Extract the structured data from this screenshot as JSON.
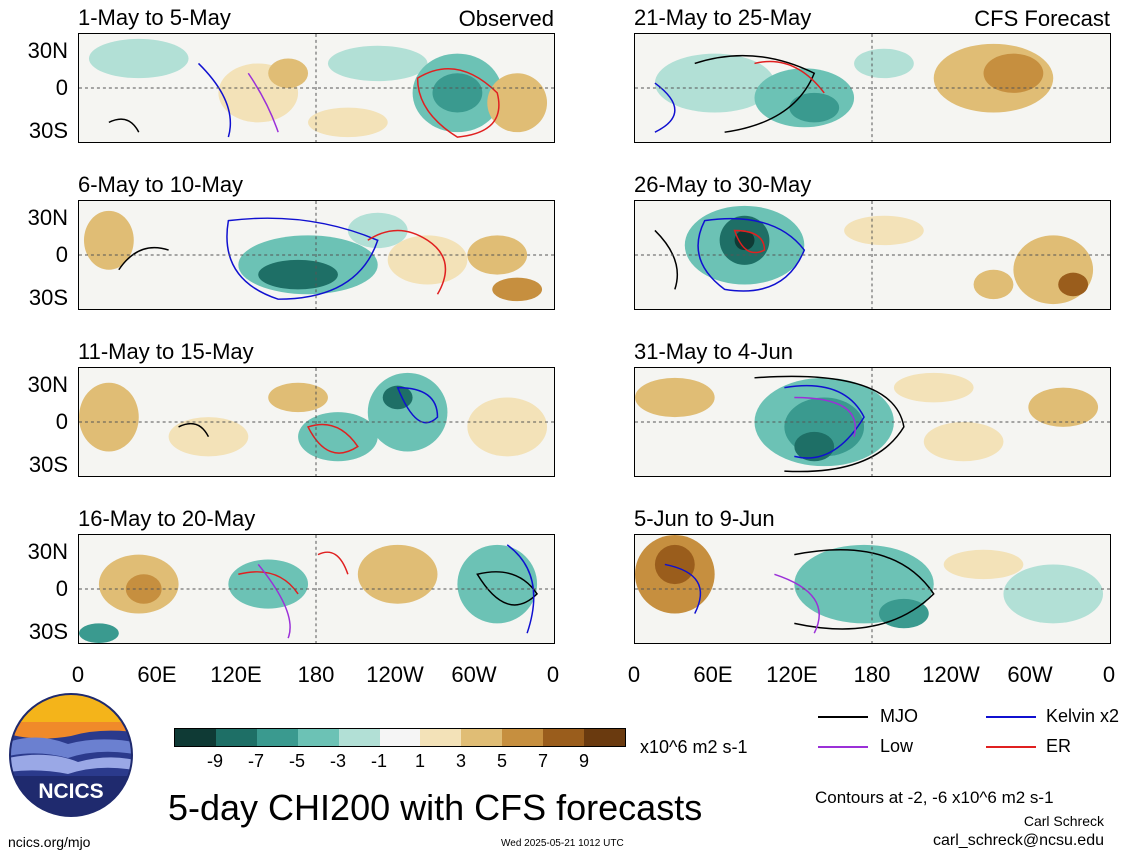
{
  "header": {
    "observed_label": "Observed",
    "forecast_label": "CFS Forecast"
  },
  "panels_left": [
    {
      "title": "1-May to 5-May"
    },
    {
      "title": "6-May to 10-May"
    },
    {
      "title": "11-May to 15-May"
    },
    {
      "title": "16-May to 20-May"
    }
  ],
  "panels_right": [
    {
      "title": "21-May to 25-May"
    },
    {
      "title": "26-May to 30-May"
    },
    {
      "title": "31-May to 4-Jun"
    },
    {
      "title": "5-Jun to 9-Jun"
    }
  ],
  "axes": {
    "lat_labels": [
      "30N",
      "0",
      "30S"
    ],
    "lon_labels": [
      "0",
      "60E",
      "120E",
      "180",
      "120W",
      "60W",
      "0"
    ]
  },
  "colorbar": {
    "labels": [
      "-9",
      "-7",
      "-5",
      "-3",
      "-1",
      "1",
      "3",
      "5",
      "7",
      "9"
    ],
    "colors": [
      "#0f3a35",
      "#1e6f66",
      "#3a9a8f",
      "#6cc2b5",
      "#b2e0d6",
      "#f5f5f5",
      "#f3e2b8",
      "#e0bd75",
      "#c68f3f",
      "#9a5d1c",
      "#6a3a0f"
    ],
    "unit": "x10^6 m2 s-1"
  },
  "legend": {
    "items": [
      {
        "label": "MJO",
        "color": "#000000"
      },
      {
        "label": "Kelvin x2",
        "color": "#1010d0"
      },
      {
        "label": "Low",
        "color": "#9b30d8"
      },
      {
        "label": "ER",
        "color": "#e02020"
      }
    ],
    "contour_note": "Contours at -2, -6 x10^6 m2 s-1",
    "author": "Carl Schreck",
    "email": "carl_schreck@ncsu.edu"
  },
  "footer": {
    "main_title": "5-day CHI200 with CFS forecasts",
    "site": "ncics.org/mjo",
    "timestamp": "Wed 2025-05-21 1012 UTC",
    "logo_text": "NCICS"
  }
}
